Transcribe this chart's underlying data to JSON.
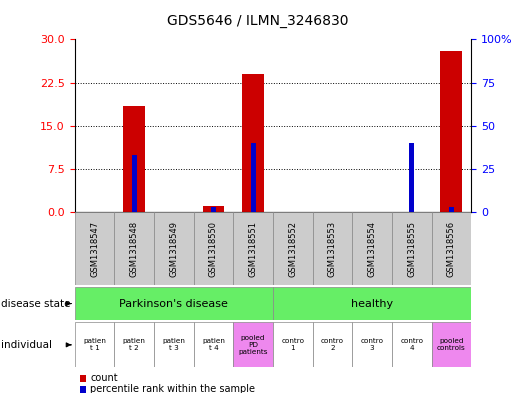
{
  "title": "GDS5646 / ILMN_3246830",
  "samples": [
    "GSM1318547",
    "GSM1318548",
    "GSM1318549",
    "GSM1318550",
    "GSM1318551",
    "GSM1318552",
    "GSM1318553",
    "GSM1318554",
    "GSM1318555",
    "GSM1318556"
  ],
  "counts": [
    0,
    18.5,
    0,
    1.0,
    24.0,
    0,
    0,
    0,
    0,
    28.0
  ],
  "percentiles": [
    0,
    33,
    0,
    3.0,
    40,
    0,
    0,
    0,
    40,
    3
  ],
  "ylim_left": [
    0,
    30
  ],
  "ylim_right": [
    0,
    100
  ],
  "yticks_left": [
    0,
    7.5,
    15,
    22.5,
    30
  ],
  "yticks_right": [
    0,
    25,
    50,
    75,
    100
  ],
  "bar_color": "#cc0000",
  "percentile_color": "#0000cc",
  "disease_state_labels": [
    "Parkinson's disease",
    "healthy"
  ],
  "disease_state_color": "#66ee66",
  "individual_labels": [
    "patien\nt 1",
    "patien\nt 2",
    "patien\nt 3",
    "patien\nt 4",
    "pooled\nPD\npatients",
    "contro\n1",
    "contro\n2",
    "contro\n3",
    "contro\n4",
    "pooled\ncontrols"
  ],
  "individual_colors": [
    "#ffffff",
    "#ffffff",
    "#ffffff",
    "#ffffff",
    "#ee88ee",
    "#ffffff",
    "#ffffff",
    "#ffffff",
    "#ffffff",
    "#ee88ee"
  ],
  "sample_bg_color": "#cccccc",
  "border_color": "#888888"
}
